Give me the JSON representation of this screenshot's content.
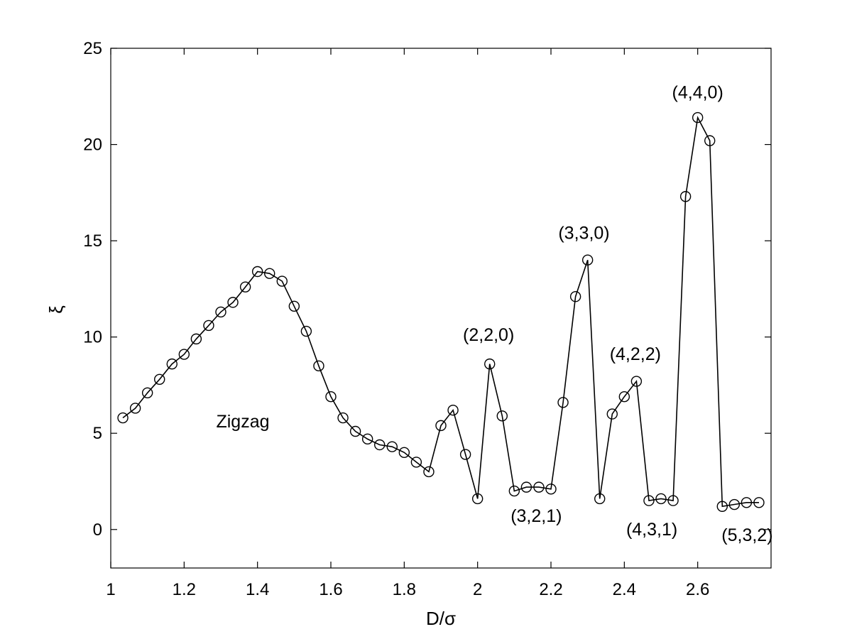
{
  "chart_data": {
    "type": "line",
    "title": "",
    "xlabel": "D/σ",
    "ylabel": "ξ",
    "xlim": [
      1.0,
      2.8
    ],
    "ylim": [
      -2,
      25
    ],
    "xticks": [
      1,
      1.2,
      1.4,
      1.6,
      1.8,
      2,
      2.2,
      2.4,
      2.6
    ],
    "xtick_labels": [
      "1",
      "1.2",
      "1.4",
      "1.6",
      "1.8",
      "2",
      "2.2",
      "2.4",
      "2.6"
    ],
    "yticks": [
      0,
      5,
      10,
      15,
      20,
      25
    ],
    "ytick_labels": [
      "0",
      "5",
      "10",
      "15",
      "20",
      "25"
    ],
    "grid": false,
    "marker": "open-circle",
    "series": [
      {
        "x": [
          1.033,
          1.067,
          1.1,
          1.133,
          1.167,
          1.2,
          1.233,
          1.267,
          1.3,
          1.333,
          1.367,
          1.4,
          1.433,
          1.467,
          1.5,
          1.533,
          1.567,
          1.6,
          1.633,
          1.667,
          1.7,
          1.733,
          1.767,
          1.8,
          1.833,
          1.867,
          1.9,
          1.933,
          1.967,
          2.0,
          2.033,
          2.067,
          2.1,
          2.133,
          2.167,
          2.2,
          2.233,
          2.267,
          2.3,
          2.333,
          2.367,
          2.4,
          2.433,
          2.467,
          2.5,
          2.533,
          2.567,
          2.6,
          2.633,
          2.667,
          2.7,
          2.733,
          2.767
        ],
        "y": [
          5.8,
          6.3,
          7.1,
          7.8,
          8.6,
          9.1,
          9.9,
          10.6,
          11.3,
          11.8,
          12.6,
          13.4,
          13.3,
          12.9,
          11.6,
          10.3,
          8.5,
          6.9,
          5.8,
          5.1,
          4.7,
          4.4,
          4.3,
          4.0,
          3.5,
          3.0,
          5.4,
          6.2,
          3.9,
          1.6,
          8.6,
          5.9,
          2.0,
          2.2,
          2.2,
          2.1,
          6.6,
          12.1,
          14.0,
          1.6,
          6.0,
          6.9,
          7.7,
          1.5,
          1.6,
          1.5,
          17.3,
          21.4,
          20.2,
          1.2,
          1.3,
          1.4,
          1.4
        ]
      }
    ],
    "annotations": [
      {
        "text": "Zigzag",
        "x": 1.36,
        "y": 5.3
      },
      {
        "text": "(2,2,0)",
        "x": 2.03,
        "y": 9.8
      },
      {
        "text": "(3,2,1)",
        "x": 2.16,
        "y": 0.4
      },
      {
        "text": "(3,3,0)",
        "x": 2.29,
        "y": 15.1
      },
      {
        "text": "(4,2,2)",
        "x": 2.43,
        "y": 8.8
      },
      {
        "text": "(4,3,1)",
        "x": 2.475,
        "y": -0.3
      },
      {
        "text": "(4,4,0)",
        "x": 2.6,
        "y": 22.4
      },
      {
        "text": "(5,3,2)",
        "x": 2.735,
        "y": -0.6
      }
    ]
  }
}
